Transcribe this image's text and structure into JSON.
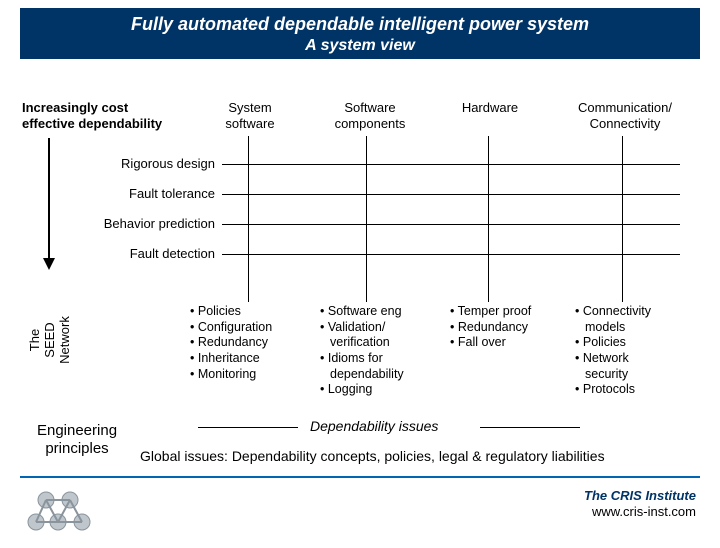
{
  "banner": {
    "title": "Fully automated dependable intelligent power system",
    "subtitle": "A system view",
    "bg_color": "#003366",
    "text_color": "#ffffff"
  },
  "left_heading": {
    "line1": "Increasingly cost",
    "line2": "effective dependability"
  },
  "columns": {
    "c1": {
      "l1": "System",
      "l2": "software"
    },
    "c2": {
      "l1": "Software",
      "l2": "components"
    },
    "c3": {
      "l1": "Hardware",
      "l2": ""
    },
    "c4": {
      "l1": "Communication/",
      "l2": "Connectivity"
    }
  },
  "rows": {
    "r1": "Rigorous design",
    "r2": "Fault tolerance",
    "r3": "Behavior prediction",
    "r4": "Fault detection"
  },
  "vertical_label": {
    "l1": "The",
    "l2": "SEED",
    "l3": "Network"
  },
  "cells": {
    "c1": [
      "Policies",
      "Configuration",
      "Redundancy",
      "Inheritance",
      "Monitoring"
    ],
    "c2": [
      {
        "t": "Software eng"
      },
      {
        "t": "Validation/"
      },
      {
        "t": "verification",
        "indent": true,
        "nobullet": true
      },
      {
        "t": "Idioms for"
      },
      {
        "t": "dependability",
        "indent": true,
        "nobullet": true
      },
      {
        "t": "Logging"
      }
    ],
    "c3": [
      "Temper proof",
      "Redundancy",
      "Fall over"
    ],
    "c4": [
      {
        "t": "Connectivity"
      },
      {
        "t": "models",
        "indent": true,
        "nobullet": true
      },
      {
        "t": "Policies"
      },
      {
        "t": "Network"
      },
      {
        "t": "security",
        "indent": true,
        "nobullet": true
      },
      {
        "t": "Protocols"
      }
    ]
  },
  "eng_principles": {
    "l1": "Engineering",
    "l2": "principles"
  },
  "dep_issues": "Dependability issues",
  "global_issues": "Global issues: Dependability concepts, policies, legal & regulatory liabilities",
  "footer": {
    "inst": "The CRIS Institute",
    "url": "www.cris-inst.com"
  },
  "colors": {
    "accent": "#0066b3"
  },
  "font_sizes": {
    "title": 18,
    "subtitle": 16,
    "body": 13,
    "cell": 12.5
  }
}
